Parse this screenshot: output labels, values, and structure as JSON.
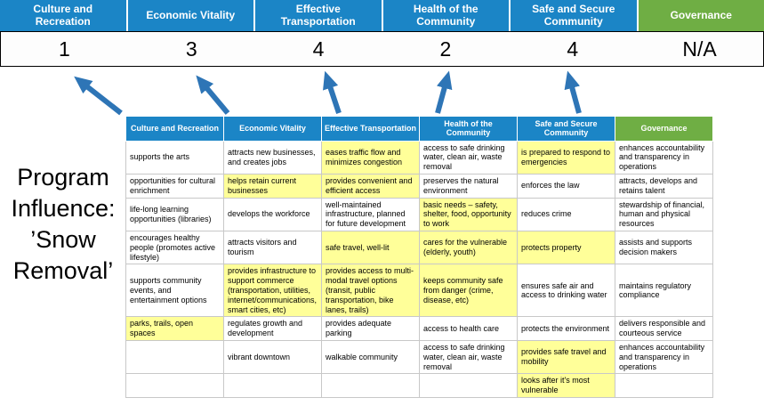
{
  "title": "Program Influence: ’Snow Removal’",
  "colors": {
    "header_blue": "#1b85c6",
    "header_green": "#6fae44",
    "highlight_yellow": "#ffff99",
    "arrow_blue": "#2e75b6",
    "cell_border": "#c8c8c8"
  },
  "pillars": [
    {
      "label": "Culture and Recreation",
      "score": "1",
      "type": "blue"
    },
    {
      "label": "Economic Vitality",
      "score": "3",
      "type": "blue"
    },
    {
      "label": "Effective Transportation",
      "score": "4",
      "type": "blue"
    },
    {
      "label": "Health of the Community",
      "score": "2",
      "type": "blue"
    },
    {
      "label": "Safe and Secure Community",
      "score": "4",
      "type": "blue"
    },
    {
      "label": "Governance",
      "score": "N/A",
      "type": "green"
    }
  ],
  "matrix": {
    "headers": [
      {
        "label": "Culture and Recreation",
        "type": "blue"
      },
      {
        "label": "Economic Vitality",
        "type": "blue"
      },
      {
        "label": "Effective Transportation",
        "type": "blue"
      },
      {
        "label": "Health of the Community",
        "type": "blue"
      },
      {
        "label": "Safe and Secure Community",
        "type": "blue"
      },
      {
        "label": "Governance",
        "type": "green"
      }
    ],
    "rows": [
      [
        {
          "text": "supports the arts",
          "highlight": false
        },
        {
          "text": "attracts new businesses, and creates jobs",
          "highlight": false
        },
        {
          "text": "eases traffic flow and minimizes congestion",
          "highlight": true
        },
        {
          "text": "access to safe drinking water, clean air, waste removal",
          "highlight": false
        },
        {
          "text": "is prepared to respond to emergencies",
          "highlight": true
        },
        {
          "text": "enhances accountability and transparency in operations",
          "highlight": false
        }
      ],
      [
        {
          "text": "opportunities for cultural enrichment",
          "highlight": false
        },
        {
          "text": "helps retain current businesses",
          "highlight": true
        },
        {
          "text": "provides convenient and efficient access",
          "highlight": true
        },
        {
          "text": "preserves the natural environment",
          "highlight": false
        },
        {
          "text": "enforces the law",
          "highlight": false
        },
        {
          "text": "attracts, develops and retains talent",
          "highlight": false
        }
      ],
      [
        {
          "text": "life-long learning opportunities (libraries)",
          "highlight": false
        },
        {
          "text": "develops the workforce",
          "highlight": false
        },
        {
          "text": "well-maintained infrastructure, planned for future development",
          "highlight": false
        },
        {
          "text": "basic needs – safety, shelter, food, opportunity to work",
          "highlight": true
        },
        {
          "text": "reduces crime",
          "highlight": false
        },
        {
          "text": "stewardship of financial, human and physical resources",
          "highlight": false
        }
      ],
      [
        {
          "text": "encourages healthy people (promotes active lifestyle)",
          "highlight": false
        },
        {
          "text": "attracts visitors and tourism",
          "highlight": false
        },
        {
          "text": "safe travel, well-lit",
          "highlight": true
        },
        {
          "text": "cares for the vulnerable (elderly, youth)",
          "highlight": true
        },
        {
          "text": "protects property",
          "highlight": true
        },
        {
          "text": "assists and supports decision makers",
          "highlight": false
        }
      ],
      [
        {
          "text": "supports community events, and entertainment options",
          "highlight": false
        },
        {
          "text": "provides infrastructure to support commerce (transportation, utilities, internet/communications, smart cities, etc)",
          "highlight": true
        },
        {
          "text": "provides access to multi-modal travel options (transit, public transportation, bike lanes, trails)",
          "highlight": true
        },
        {
          "text": "keeps community safe from danger (crime, disease, etc)",
          "highlight": true
        },
        {
          "text": "ensures safe air and access to drinking water",
          "highlight": false
        },
        {
          "text": "maintains regulatory compliance",
          "highlight": false
        }
      ],
      [
        {
          "text": "parks, trails, open spaces",
          "highlight": true
        },
        {
          "text": "regulates growth and development",
          "highlight": false
        },
        {
          "text": "provides adequate parking",
          "highlight": false
        },
        {
          "text": "access to health care",
          "highlight": false
        },
        {
          "text": "protects the environment",
          "highlight": false
        },
        {
          "text": "delivers responsible and courteous service",
          "highlight": false
        }
      ],
      [
        {
          "text": "",
          "highlight": false
        },
        {
          "text": "vibrant downtown",
          "highlight": false
        },
        {
          "text": "walkable community",
          "highlight": false
        },
        {
          "text": "access to safe drinking water, clean air, waste removal",
          "highlight": false
        },
        {
          "text": "provides safe travel and mobility",
          "highlight": true
        },
        {
          "text": "enhances accountability and transparency in operations",
          "highlight": false
        }
      ],
      [
        {
          "text": "",
          "highlight": false
        },
        {
          "text": "",
          "highlight": false
        },
        {
          "text": "",
          "highlight": false
        },
        {
          "text": "",
          "highlight": false
        },
        {
          "text": "looks after it's most vulnerable",
          "highlight": true
        },
        {
          "text": "",
          "highlight": false
        }
      ]
    ]
  }
}
